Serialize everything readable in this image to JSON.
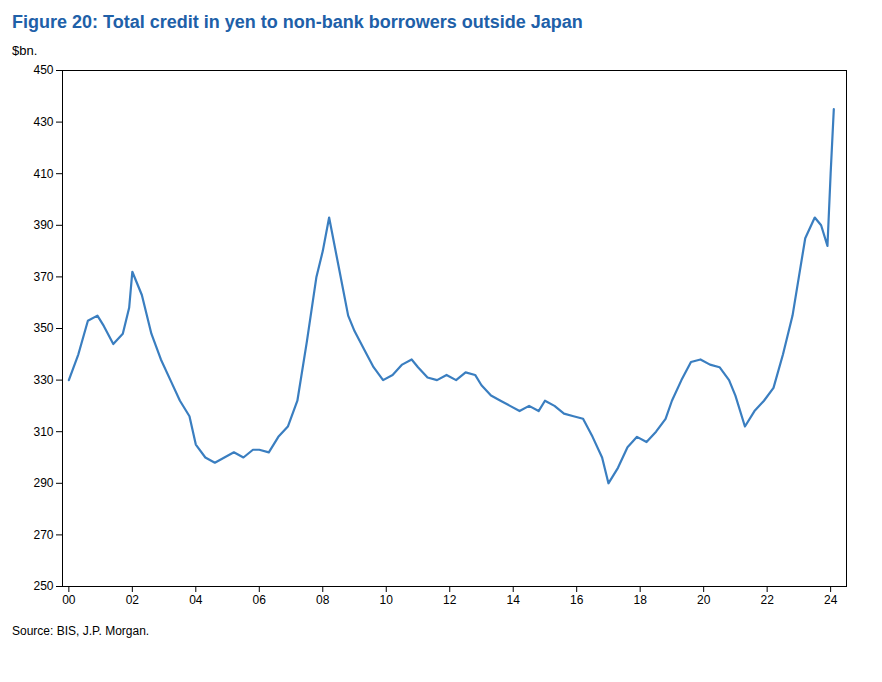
{
  "chart_data": {
    "type": "line",
    "title": "Figure 20: Total credit in yen to non-bank borrowers outside Japan",
    "ylabel": "$bn.",
    "source": "Source: BIS, J.P. Morgan.",
    "color": "#3A7EC0",
    "grid": false,
    "xlim": [
      -0.2,
      24.5
    ],
    "ylim": [
      250,
      450
    ],
    "yticks": [
      250,
      270,
      290,
      310,
      330,
      350,
      370,
      390,
      410,
      430,
      450
    ],
    "xticks": [
      {
        "value": 0,
        "label": "00"
      },
      {
        "value": 2,
        "label": "02"
      },
      {
        "value": 4,
        "label": "04"
      },
      {
        "value": 6,
        "label": "06"
      },
      {
        "value": 8,
        "label": "08"
      },
      {
        "value": 10,
        "label": "10"
      },
      {
        "value": 12,
        "label": "12"
      },
      {
        "value": 14,
        "label": "14"
      },
      {
        "value": 16,
        "label": "16"
      },
      {
        "value": 18,
        "label": "18"
      },
      {
        "value": 20,
        "label": "20"
      },
      {
        "value": 22,
        "label": "22"
      },
      {
        "value": 24,
        "label": "24"
      }
    ],
    "x": [
      0.0,
      0.3,
      0.6,
      0.9,
      1.1,
      1.4,
      1.7,
      1.9,
      2.0,
      2.3,
      2.6,
      2.9,
      3.2,
      3.5,
      3.8,
      4.0,
      4.3,
      4.6,
      4.9,
      5.2,
      5.5,
      5.8,
      6.0,
      6.3,
      6.6,
      6.9,
      7.2,
      7.5,
      7.8,
      8.0,
      8.2,
      8.5,
      8.8,
      9.0,
      9.3,
      9.6,
      9.9,
      10.2,
      10.5,
      10.8,
      11.0,
      11.3,
      11.6,
      11.9,
      12.2,
      12.5,
      12.8,
      13.0,
      13.3,
      13.6,
      13.9,
      14.2,
      14.5,
      14.8,
      15.0,
      15.3,
      15.6,
      15.9,
      16.2,
      16.5,
      16.8,
      17.0,
      17.3,
      17.6,
      17.9,
      18.2,
      18.5,
      18.8,
      19.0,
      19.3,
      19.6,
      19.9,
      20.2,
      20.5,
      20.8,
      21.0,
      21.3,
      21.6,
      21.9,
      22.2,
      22.5,
      22.8,
      23.0,
      23.2,
      23.5,
      23.7,
      23.9,
      24.0,
      24.1
    ],
    "values": [
      330,
      340,
      353,
      355,
      351,
      344,
      348,
      358,
      372,
      363,
      348,
      338,
      330,
      322,
      316,
      305,
      300,
      298,
      300,
      302,
      300,
      303,
      303,
      302,
      308,
      312,
      322,
      345,
      370,
      380,
      393,
      374,
      355,
      349,
      342,
      335,
      330,
      332,
      336,
      338,
      335,
      331,
      330,
      332,
      330,
      333,
      332,
      328,
      324,
      322,
      320,
      318,
      320,
      318,
      322,
      320,
      317,
      316,
      315,
      308,
      300,
      290,
      296,
      304,
      308,
      306,
      310,
      315,
      322,
      330,
      337,
      338,
      336,
      335,
      330,
      324,
      312,
      318,
      322,
      327,
      340,
      355,
      370,
      385,
      393,
      390,
      382,
      410,
      435
    ]
  }
}
